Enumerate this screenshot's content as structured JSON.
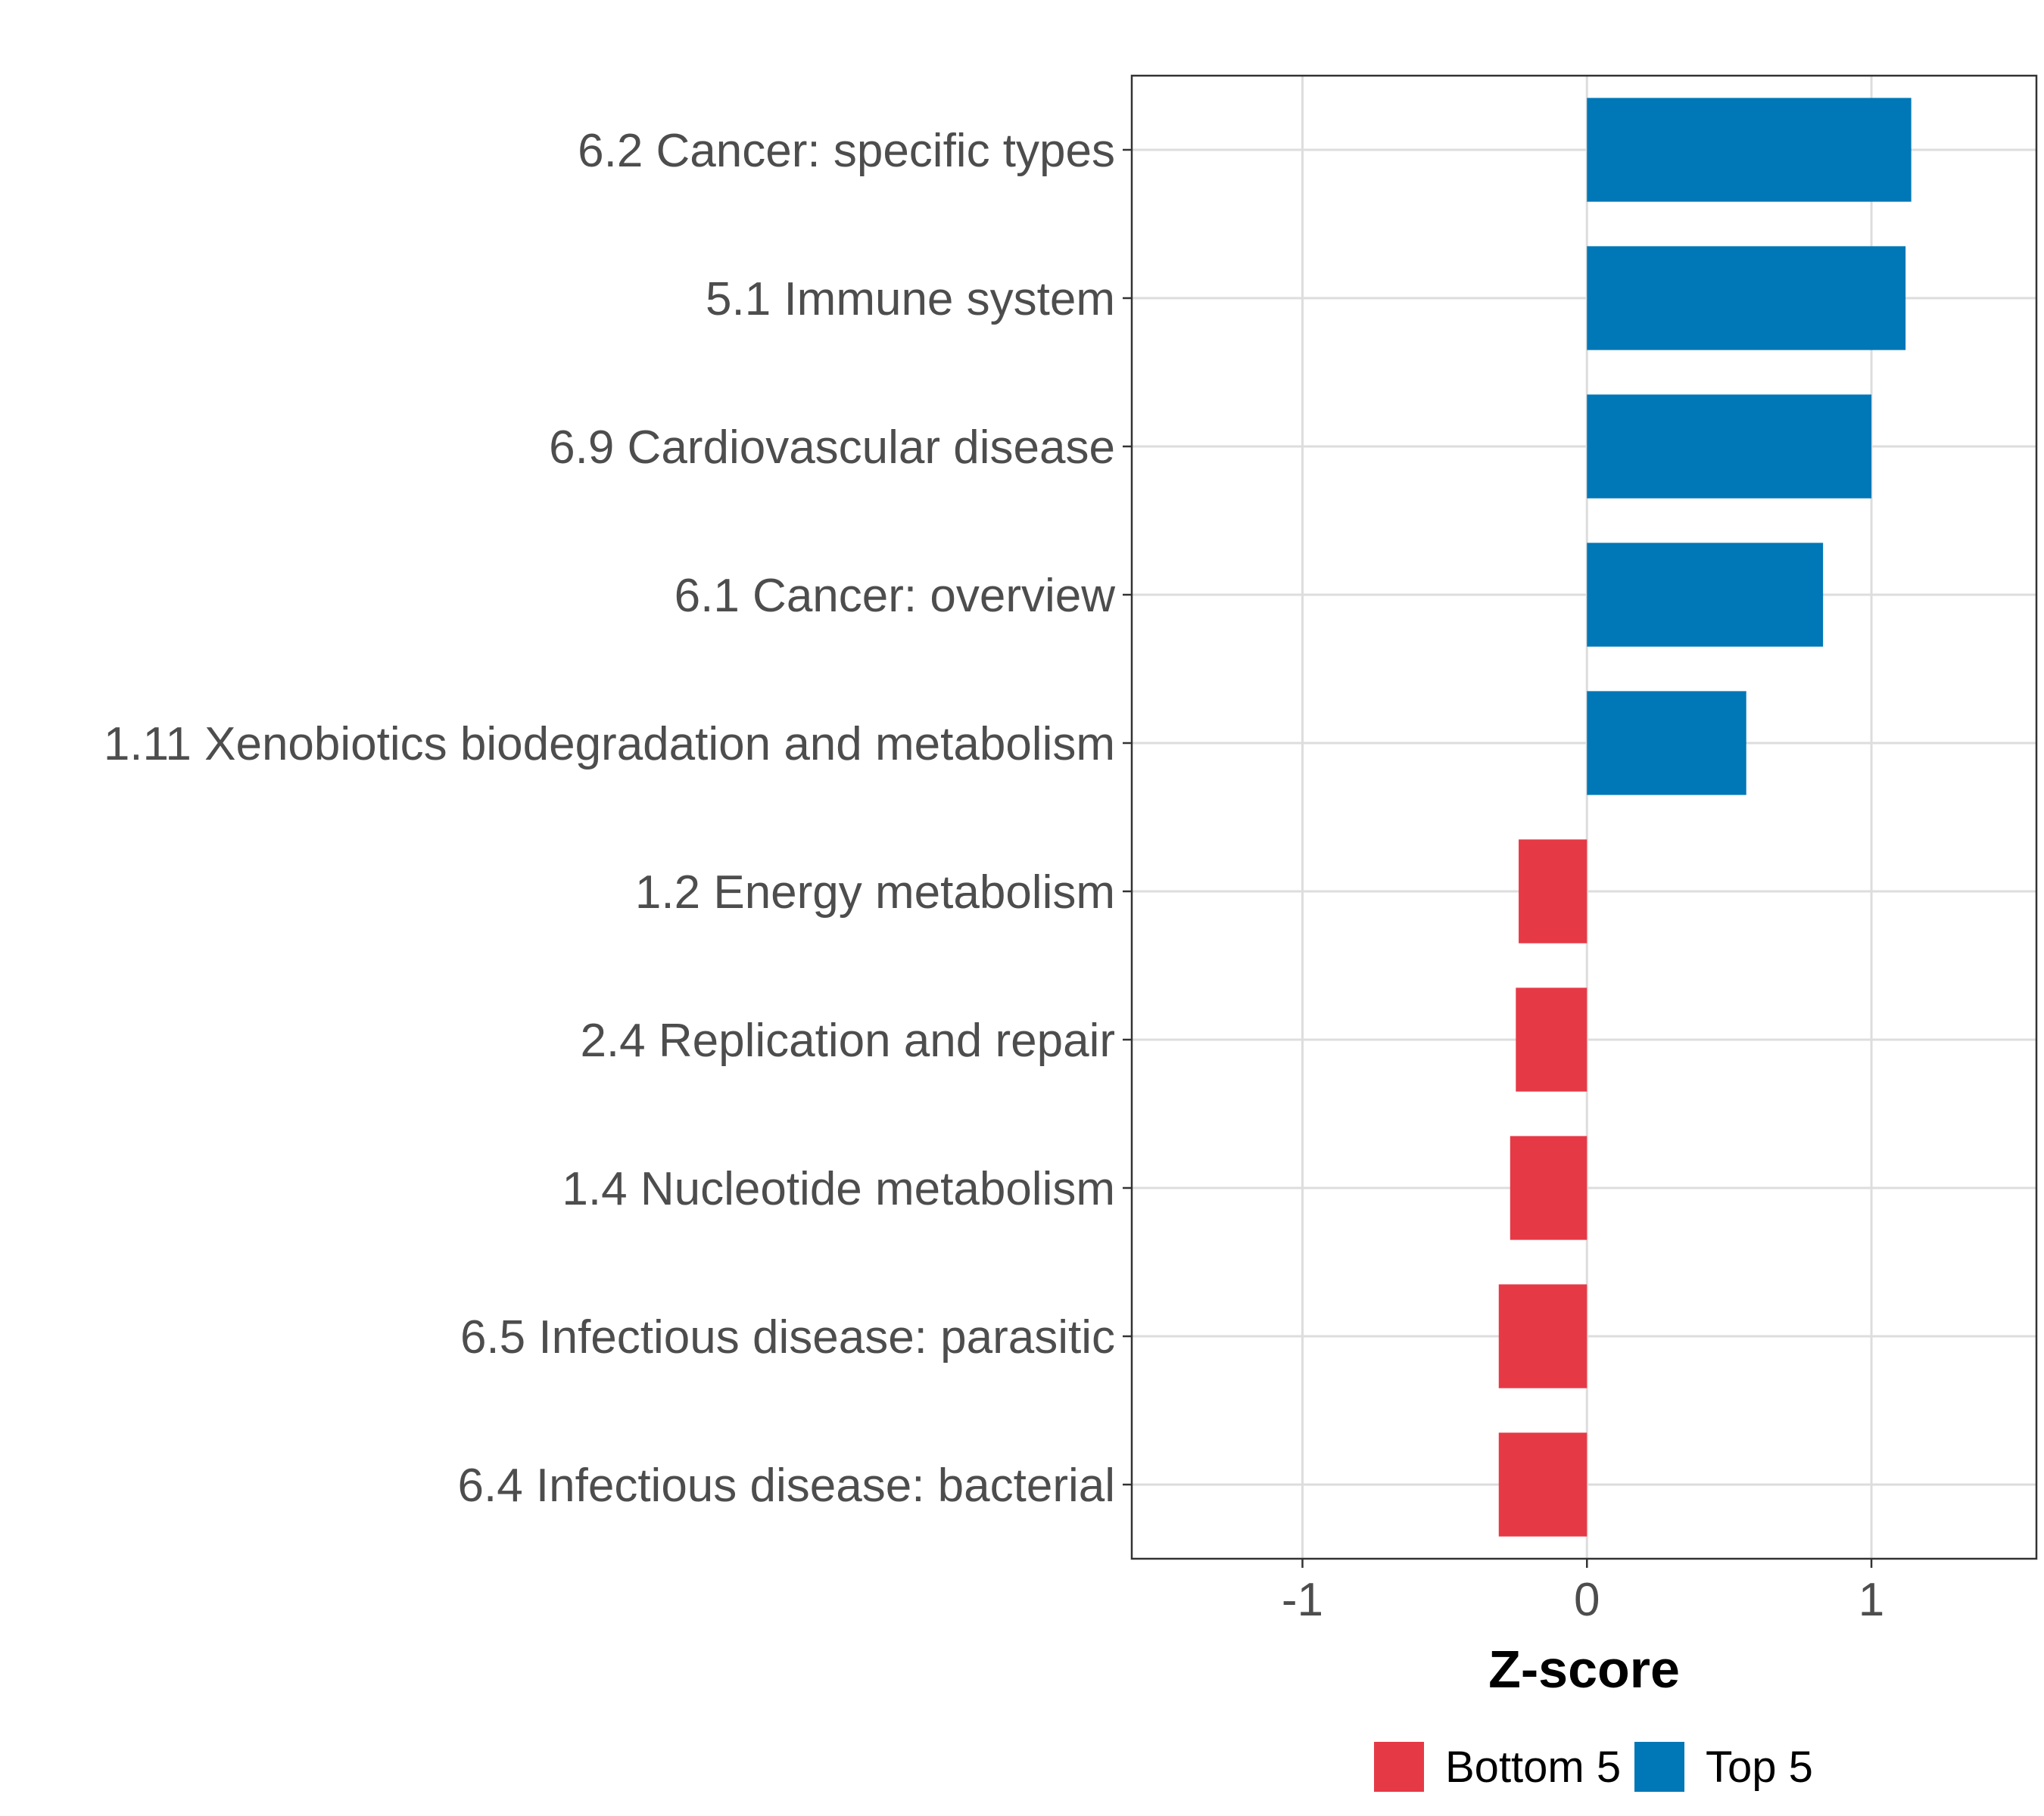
{
  "chart_data": {
    "type": "bar",
    "orientation": "horizontal",
    "xlabel": "Z-score",
    "ylabel": "",
    "xlim": [
      -1.6,
      1.58
    ],
    "xticks": [
      -1,
      0,
      1
    ],
    "xtick_labels": [
      "-1",
      "0",
      "1"
    ],
    "grid": true,
    "categories": [
      "6.2 Cancer: specific types",
      "5.1 Immune system",
      "6.9 Cardiovascular disease",
      "6.1 Cancer: overview",
      "1.11 Xenobiotics biodegradation and metabolism",
      "1.2 Energy metabolism",
      "2.4 Replication and repair",
      "1.4 Nucleotide metabolism",
      "6.5 Infectious disease: parasitic",
      "6.4 Infectious disease: bacterial"
    ],
    "values": [
      1.14,
      1.12,
      1.0,
      0.83,
      0.56,
      -0.24,
      -0.25,
      -0.27,
      -0.31,
      -0.31
    ],
    "groups": [
      "Top 5",
      "Top 5",
      "Top 5",
      "Top 5",
      "Top 5",
      "Bottom 5",
      "Bottom 5",
      "Bottom 5",
      "Bottom 5",
      "Bottom 5"
    ],
    "legend": {
      "placement": "bottom",
      "entries": [
        {
          "label": "Bottom 5",
          "color": "#e63946"
        },
        {
          "label": "Top 5",
          "color": "#0077b6"
        }
      ]
    }
  }
}
